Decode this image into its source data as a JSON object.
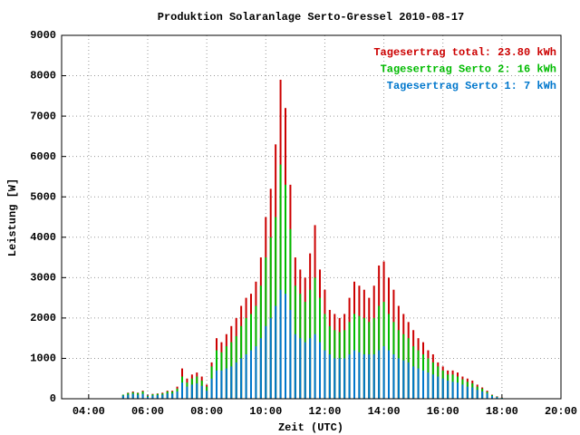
{
  "chart_data": {
    "type": "bar",
    "title": "Produktion Solaranlage Serto-Gressel 2010-08-17",
    "xlabel": "Zeit (UTC)",
    "ylabel": "Leistung [W]",
    "x": [
      310,
      320,
      330,
      340,
      350,
      360,
      370,
      380,
      390,
      400,
      410,
      420,
      430,
      440,
      450,
      460,
      470,
      480,
      490,
      500,
      510,
      520,
      530,
      540,
      550,
      560,
      570,
      580,
      590,
      600,
      610,
      620,
      630,
      640,
      650,
      660,
      670,
      680,
      690,
      700,
      710,
      720,
      730,
      740,
      750,
      760,
      770,
      780,
      790,
      800,
      810,
      820,
      830,
      840,
      850,
      860,
      870,
      880,
      890,
      900,
      910,
      920,
      930,
      940,
      950,
      960,
      970,
      980,
      990,
      1000,
      1010,
      1020,
      1030,
      1040,
      1050,
      1060,
      1070,
      1080
    ],
    "series": [
      {
        "name": "Tagesertrag total: 23.80 kWh",
        "color": "#cc0000",
        "values": [
          100,
          150,
          180,
          150,
          200,
          80,
          120,
          130,
          150,
          200,
          200,
          300,
          750,
          500,
          600,
          650,
          550,
          350,
          900,
          1500,
          1400,
          1600,
          1800,
          2000,
          2300,
          2500,
          2600,
          2900,
          3500,
          4500,
          5200,
          6300,
          7900,
          7200,
          5300,
          3500,
          3200,
          3000,
          3600,
          4300,
          3200,
          2700,
          2200,
          2100,
          2000,
          2100,
          2500,
          2900,
          2800,
          2700,
          2500,
          2800,
          3300,
          3400,
          3000,
          2700,
          2300,
          2100,
          1900,
          1700,
          1500,
          1400,
          1200,
          1100,
          900,
          800,
          700,
          700,
          650,
          550,
          500,
          450,
          350,
          280,
          200,
          100,
          60,
          30
        ]
      },
      {
        "name": "Tagesertrag Serto 2: 16 kWh",
        "color": "#00bb00",
        "values": [
          100,
          140,
          160,
          140,
          180,
          70,
          110,
          120,
          130,
          180,
          180,
          250,
          550,
          400,
          500,
          550,
          450,
          300,
          800,
          1200,
          1150,
          1300,
          1400,
          1550,
          1800,
          2000,
          2100,
          2300,
          2800,
          3500,
          4000,
          4500,
          5800,
          5300,
          4200,
          2800,
          2600,
          2400,
          2700,
          3000,
          2500,
          2100,
          1800,
          1700,
          1650,
          1700,
          1900,
          2100,
          2050,
          2000,
          1900,
          2000,
          2300,
          2400,
          2100,
          1900,
          1700,
          1600,
          1500,
          1300,
          1200,
          1100,
          1000,
          900,
          800,
          700,
          600,
          600,
          550,
          480,
          420,
          380,
          300,
          250,
          170,
          90,
          50,
          25
        ]
      },
      {
        "name": "Tagesertrag Serto 1: 7 kWh",
        "color": "#0077cc",
        "values": [
          80,
          100,
          120,
          100,
          120,
          50,
          80,
          90,
          100,
          130,
          130,
          180,
          400,
          300,
          350,
          380,
          320,
          200,
          500,
          700,
          700,
          750,
          800,
          900,
          1000,
          1100,
          1200,
          1300,
          1500,
          1800,
          2000,
          2300,
          2700,
          2600,
          2200,
          1600,
          1500,
          1400,
          1500,
          1600,
          1400,
          1200,
          1100,
          1000,
          1000,
          1000,
          1100,
          1200,
          1150,
          1100,
          1100,
          1100,
          1200,
          1300,
          1200,
          1100,
          1000,
          950,
          900,
          800,
          750,
          700,
          650,
          600,
          550,
          500,
          450,
          420,
          400,
          350,
          300,
          280,
          220,
          180,
          130,
          70,
          40,
          20
        ]
      }
    ],
    "xlim": [
      185,
      1200
    ],
    "xticks": [
      {
        "value": 240,
        "label": "04:00"
      },
      {
        "value": 360,
        "label": "06:00"
      },
      {
        "value": 480,
        "label": "08:00"
      },
      {
        "value": 600,
        "label": "10:00"
      },
      {
        "value": 720,
        "label": "12:00"
      },
      {
        "value": 840,
        "label": "14:00"
      },
      {
        "value": 960,
        "label": "16:00"
      },
      {
        "value": 1080,
        "label": "18:00"
      },
      {
        "value": 1200,
        "label": "20:00"
      }
    ],
    "ylim": [
      0,
      9000
    ],
    "yticks": [
      0,
      1000,
      2000,
      3000,
      4000,
      5000,
      6000,
      7000,
      8000,
      9000
    ],
    "grid": true,
    "legend": "upper right"
  }
}
